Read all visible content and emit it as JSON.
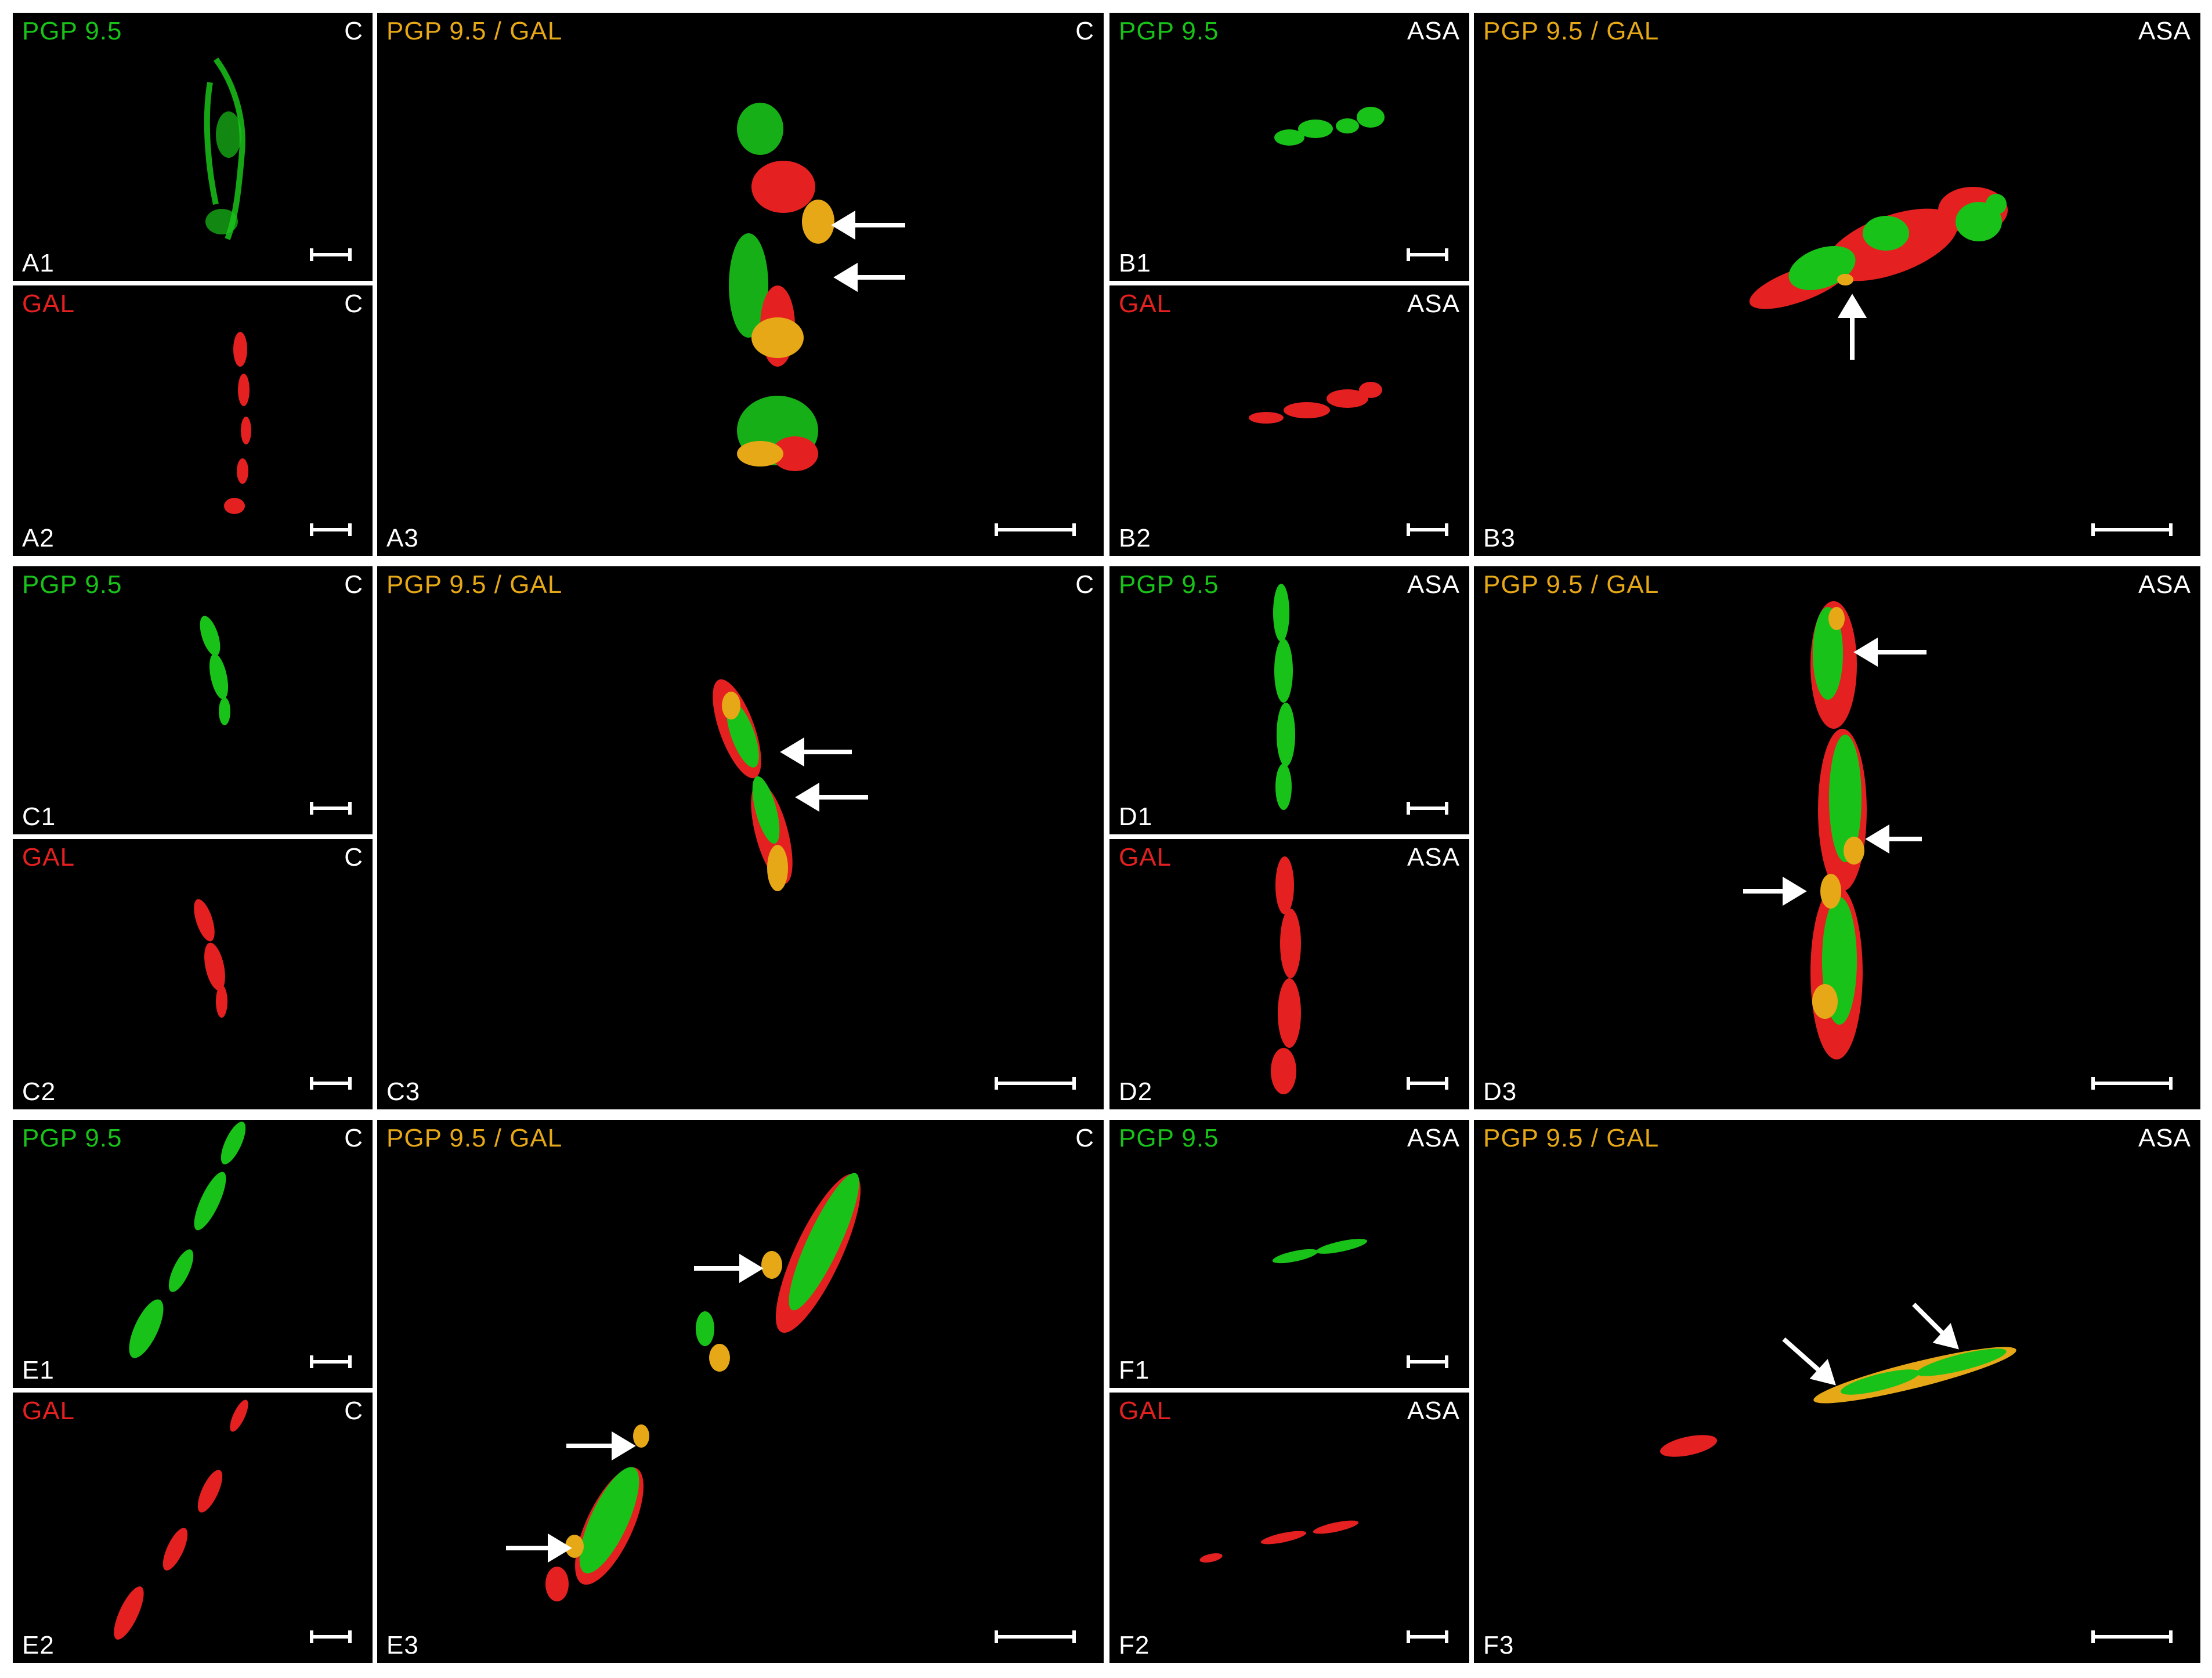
{
  "colors": {
    "green": "#19c219",
    "red": "#e52020",
    "yellow": "#e6a817",
    "white": "#ffffff"
  },
  "groups": [
    {
      "id": "A",
      "condition": "C",
      "p1": {
        "stain": "PGP 9.5",
        "id": "A1"
      },
      "p2": {
        "stain": "GAL",
        "id": "A2"
      },
      "p3": {
        "stain": "PGP 9.5 / GAL",
        "id": "A3"
      }
    },
    {
      "id": "B",
      "condition": "ASA",
      "p1": {
        "stain": "PGP 9.5",
        "id": "B1"
      },
      "p2": {
        "stain": "GAL",
        "id": "B2"
      },
      "p3": {
        "stain": "PGP 9.5 / GAL",
        "id": "B3"
      }
    },
    {
      "id": "C",
      "condition": "C",
      "p1": {
        "stain": "PGP 9.5",
        "id": "C1"
      },
      "p2": {
        "stain": "GAL",
        "id": "C2"
      },
      "p3": {
        "stain": "PGP 9.5 / GAL",
        "id": "C3"
      }
    },
    {
      "id": "D",
      "condition": "ASA",
      "p1": {
        "stain": "PGP 9.5",
        "id": "D1"
      },
      "p2": {
        "stain": "GAL",
        "id": "D2"
      },
      "p3": {
        "stain": "PGP 9.5 / GAL",
        "id": "D3"
      }
    },
    {
      "id": "E",
      "condition": "C",
      "p1": {
        "stain": "PGP 9.5",
        "id": "E1"
      },
      "p2": {
        "stain": "GAL",
        "id": "E2"
      },
      "p3": {
        "stain": "PGP 9.5 / GAL",
        "id": "E3"
      }
    },
    {
      "id": "F",
      "condition": "ASA",
      "p1": {
        "stain": "PGP 9.5",
        "id": "F1"
      },
      "p2": {
        "stain": "GAL",
        "id": "F2"
      },
      "p3": {
        "stain": "PGP 9.5 / GAL",
        "id": "F3"
      }
    }
  ]
}
